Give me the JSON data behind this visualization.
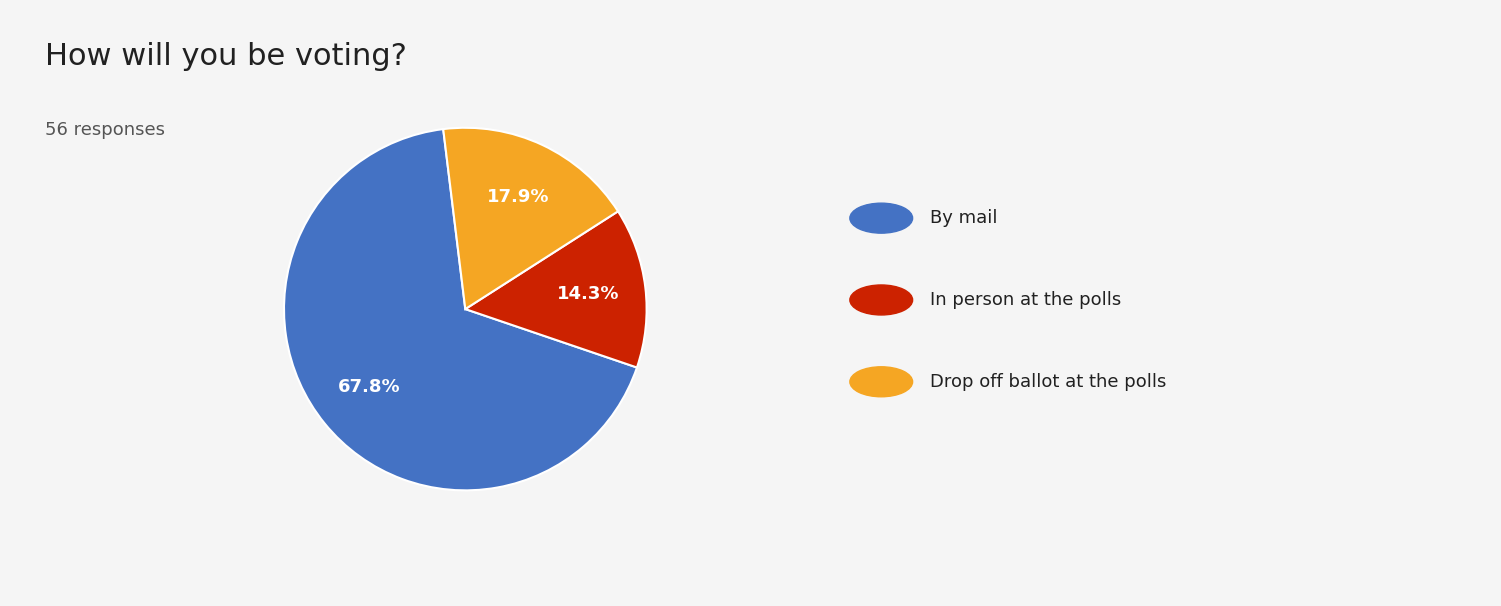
{
  "title": "How will you be voting?",
  "subtitle": "56 responses",
  "labels": [
    "By mail",
    "In person at the polls",
    "Drop off ballot at the polls"
  ],
  "values": [
    67.9,
    14.3,
    17.9
  ],
  "colors": [
    "#4472C4",
    "#CC2200",
    "#F5A623"
  ],
  "background_color": "#f5f5f5",
  "title_fontsize": 22,
  "subtitle_fontsize": 13,
  "legend_fontsize": 13,
  "autopct_fontsize": 13,
  "startangle": 97
}
